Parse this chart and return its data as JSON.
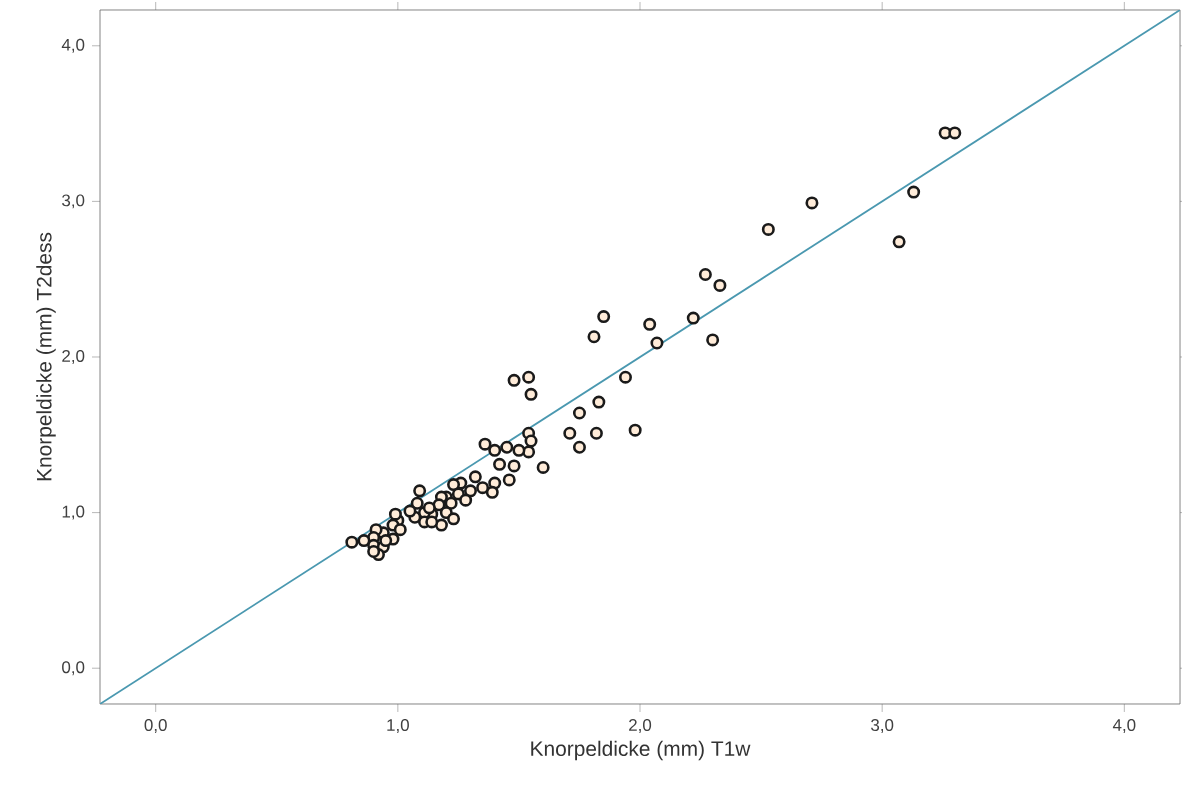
{
  "chart_data": {
    "type": "scatter",
    "xlabel": "Knorpeldicke (mm) T1w",
    "ylabel": "Knorpeldicke (mm) T2dess",
    "xlim": [
      -0.23,
      4.23
    ],
    "ylim": [
      -0.23,
      4.23
    ],
    "xticks": [
      {
        "value": 0,
        "label": "0,0"
      },
      {
        "value": 1,
        "label": "1,0"
      },
      {
        "value": 2,
        "label": "2,0"
      },
      {
        "value": 3,
        "label": "3,0"
      },
      {
        "value": 4,
        "label": "4,0"
      }
    ],
    "yticks": [
      {
        "value": 0,
        "label": "0,0"
      },
      {
        "value": 1,
        "label": "1,0"
      },
      {
        "value": 2,
        "label": "2,0"
      },
      {
        "value": 3,
        "label": "3,0"
      },
      {
        "value": 4,
        "label": "4,0"
      }
    ],
    "grid": false,
    "marker": "circle",
    "series": [
      {
        "color": "#1a1a1a",
        "x": [
          3.26,
          3.3,
          3.13,
          3.07,
          2.71,
          2.53,
          2.27,
          2.33,
          2.22,
          2.3,
          1.85,
          1.81,
          2.04,
          2.07,
          1.94,
          1.54,
          1.55,
          1.83,
          1.75,
          1.71,
          1.82,
          1.98,
          1.75,
          1.6,
          1.54,
          1.55,
          1.54,
          1.48,
          1.36,
          1.4,
          1.45,
          1.5,
          1.42,
          1.48,
          1.46,
          1.4,
          1.39,
          1.32,
          1.35,
          1.3,
          1.26,
          1.23,
          1.25,
          1.2,
          1.28,
          1.22,
          1.18,
          1.17,
          1.2,
          1.23,
          1.18,
          1.14,
          1.09,
          1.08,
          1.11,
          1.13,
          1.11,
          1.07,
          1.05,
          1.0,
          0.99,
          0.98,
          0.98,
          1.01,
          0.94,
          0.91,
          0.9,
          0.86,
          0.81,
          0.9,
          0.94,
          0.92,
          0.9,
          0.95,
          1.14
        ],
        "values": [
          3.44,
          3.44,
          3.06,
          2.74,
          2.99,
          2.82,
          2.53,
          2.46,
          2.25,
          2.11,
          2.26,
          2.13,
          2.21,
          2.09,
          1.87,
          1.87,
          1.76,
          1.71,
          1.64,
          1.51,
          1.51,
          1.53,
          1.42,
          1.29,
          1.51,
          1.46,
          1.39,
          1.85,
          1.44,
          1.4,
          1.42,
          1.4,
          1.31,
          1.3,
          1.21,
          1.19,
          1.13,
          1.23,
          1.16,
          1.14,
          1.19,
          1.18,
          1.12,
          1.1,
          1.08,
          1.06,
          1.1,
          1.05,
          1.0,
          0.96,
          0.92,
          0.99,
          1.14,
          1.06,
          1.0,
          1.03,
          0.94,
          0.97,
          1.01,
          0.95,
          0.99,
          0.92,
          0.83,
          0.89,
          0.87,
          0.89,
          0.84,
          0.82,
          0.81,
          0.79,
          0.78,
          0.73,
          0.75,
          0.82,
          0.94
        ]
      },
      {
        "type": "line",
        "color": "#4a98b0",
        "marker": "none",
        "x": [
          -0.23,
          4.23
        ],
        "values": [
          -0.23,
          4.23
        ]
      }
    ]
  }
}
